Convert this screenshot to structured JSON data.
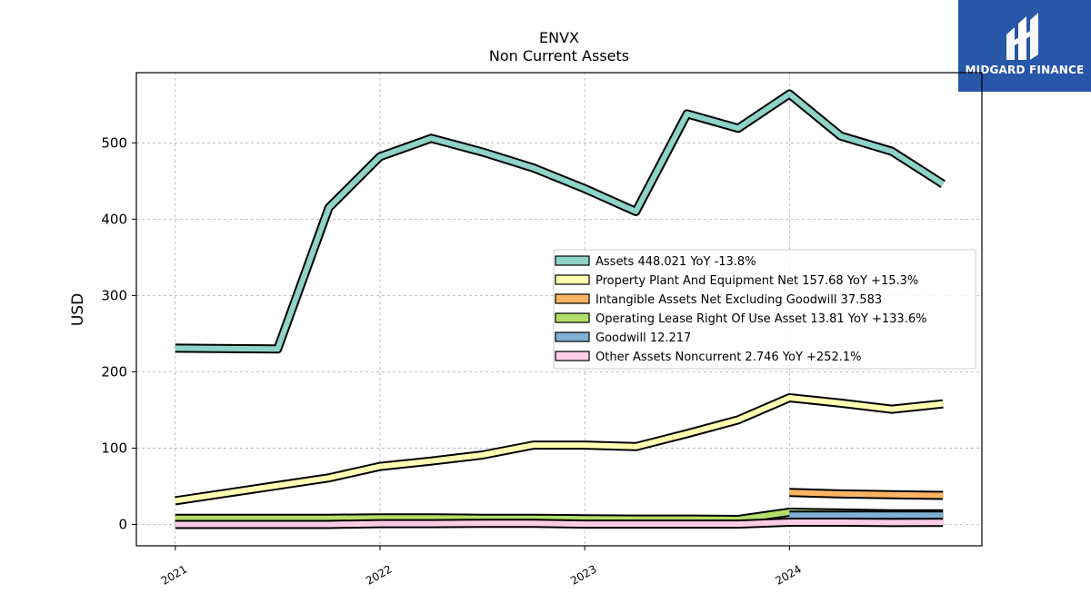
{
  "header": {
    "ticker": "ENVX",
    "subtitle": "Non Current  Assets"
  },
  "logo": {
    "text": "MIDGARD FINANCE",
    "color": "#2856a8"
  },
  "chart_data": {
    "type": "line",
    "title": "ENVX",
    "subtitle": "Non Current  Assets",
    "ylabel": "USD",
    "xlabel": "",
    "ylim": [
      -28,
      592
    ],
    "xlim": [
      2020.81,
      2024.94
    ],
    "yticks": [
      0,
      100,
      200,
      300,
      400,
      500
    ],
    "xticks": [
      {
        "value": 2021,
        "label": "2021"
      },
      {
        "value": 2022,
        "label": "2022"
      },
      {
        "value": 2023,
        "label": "2023"
      },
      {
        "value": 2024,
        "label": "2024"
      }
    ],
    "grid": true,
    "legend_position": "right",
    "series": [
      {
        "name": "Assets",
        "legend": "Assets  448.021 YoY -13.8%",
        "color": "#8dd3c7",
        "x": [
          2021.0,
          2021.5,
          2021.75,
          2022.0,
          2022.25,
          2022.5,
          2022.75,
          2023.0,
          2023.25,
          2023.5,
          2023.75,
          2024.0,
          2024.25,
          2024.5,
          2024.75
        ],
        "y": [
          231,
          230,
          415,
          482,
          506,
          488,
          467,
          440,
          410,
          538,
          519,
          564,
          509,
          489,
          446
        ]
      },
      {
        "name": "Property Plant And Equipment Net",
        "legend": "Property Plant And Equipment Net  157.68 YoY +15.3%",
        "color": "#ffffb3",
        "x": [
          2021.0,
          2021.5,
          2021.75,
          2022.0,
          2022.25,
          2022.5,
          2022.75,
          2023.0,
          2023.25,
          2023.5,
          2023.75,
          2024.0,
          2024.25,
          2024.5,
          2024.75
        ],
        "y": [
          31,
          51,
          61,
          76,
          83,
          91,
          104,
          104,
          102,
          119,
          137,
          166,
          159,
          151,
          158
        ]
      },
      {
        "name": "Intangible Assets Net Excluding Goodwill",
        "legend": "Intangible Assets Net Excluding Goodwill  37.583",
        "color": "#fdb462",
        "x": [
          2024.0,
          2024.25,
          2024.5,
          2024.75
        ],
        "y": [
          42,
          40,
          39,
          38
        ]
      },
      {
        "name": "Operating Lease Right Of Use Asset",
        "legend": "Operating Lease Right Of Use Asset  13.81 YoY +133.6%",
        "color": "#b3de69",
        "x": [
          2021.0,
          2021.5,
          2021.75,
          2022.0,
          2022.25,
          2022.5,
          2022.75,
          2023.0,
          2023.25,
          2023.5,
          2023.75,
          2024.0,
          2024.25,
          2024.5,
          2024.75
        ],
        "y": [
          8,
          8,
          8,
          8.5,
          8.5,
          8,
          8,
          7.5,
          7,
          7,
          6.5,
          16,
          15,
          14,
          14
        ]
      },
      {
        "name": "Goodwill",
        "legend": "Goodwill  12.217",
        "color": "#80b1d3",
        "x": [
          2024.0,
          2024.25,
          2024.5,
          2024.75
        ],
        "y": [
          12.2,
          12.2,
          12.2,
          12.2
        ]
      },
      {
        "name": "Other Assets Noncurrent",
        "legend": "Other Assets Noncurrent  2.746 YoY +252.1%",
        "color": "#fccde5",
        "x": [
          2021.0,
          2021.5,
          2021.75,
          2022.0,
          2022.25,
          2022.5,
          2022.75,
          2023.0,
          2023.25,
          2023.5,
          2023.75,
          2024.0,
          2024.25,
          2024.5,
          2024.75
        ],
        "y": [
          0,
          0,
          0,
          1,
          1,
          1.5,
          1.5,
          0.5,
          0.5,
          0.5,
          0.5,
          3,
          3,
          2.5,
          2.7
        ]
      }
    ]
  }
}
